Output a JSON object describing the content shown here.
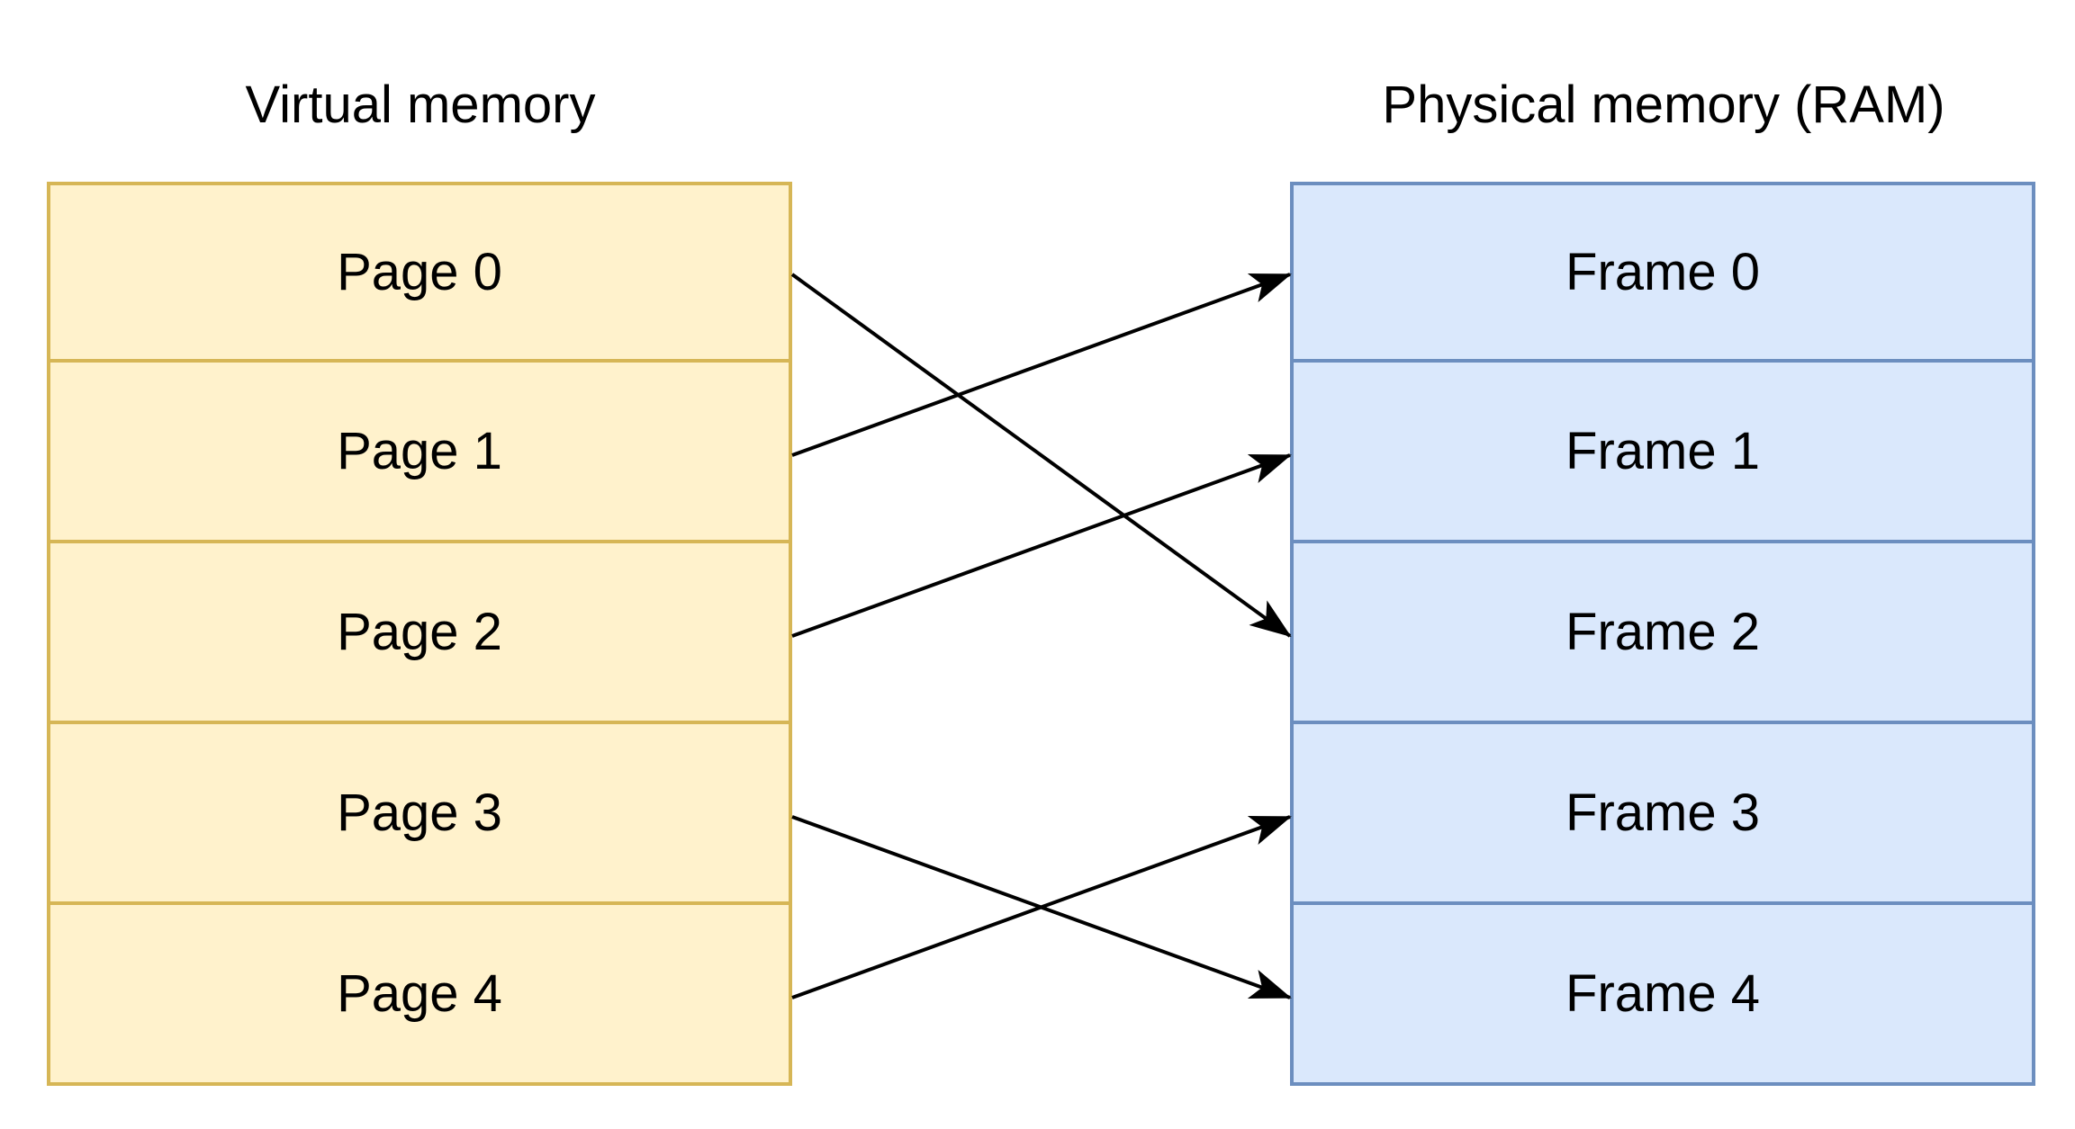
{
  "diagram": {
    "virtual": {
      "title": "Virtual memory",
      "pages": [
        "Page 0",
        "Page 1",
        "Page 2",
        "Page 3",
        "Page 4"
      ]
    },
    "physical": {
      "title": "Physical memory (RAM)",
      "frames": [
        "Frame 0",
        "Frame 1",
        "Frame 2",
        "Frame 3",
        "Frame 4"
      ]
    },
    "mappings": [
      {
        "from": "Page 0",
        "to": "Frame 2"
      },
      {
        "from": "Page 1",
        "to": "Frame 0"
      },
      {
        "from": "Page 2",
        "to": "Frame 1"
      },
      {
        "from": "Page 3",
        "to": "Frame 4"
      },
      {
        "from": "Page 4",
        "to": "Frame 3"
      }
    ],
    "colors": {
      "virtual_fill": "#fff2cc",
      "virtual_stroke": "#d6b656",
      "physical_fill": "#dae8fc",
      "physical_stroke": "#6c8ebf",
      "arrow": "#000000"
    }
  }
}
